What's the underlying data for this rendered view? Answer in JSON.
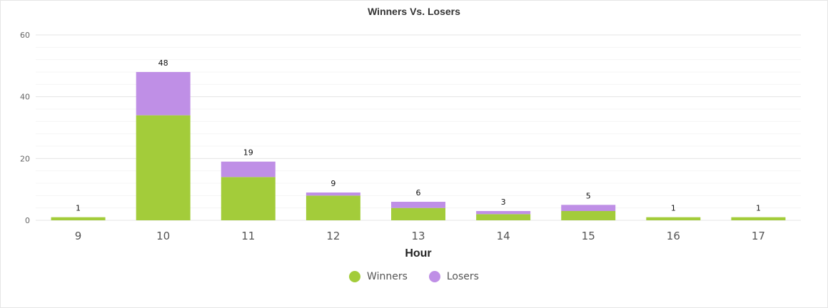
{
  "chart_data": {
    "type": "bar",
    "stacked": true,
    "title": "Winners Vs. Losers",
    "xlabel": "Hour",
    "ylabel": "",
    "ylim": [
      0,
      60
    ],
    "yticks": [
      0,
      20,
      40,
      60
    ],
    "categories": [
      "9",
      "10",
      "11",
      "12",
      "13",
      "14",
      "15",
      "16",
      "17"
    ],
    "series": [
      {
        "name": "Winners",
        "color": "#a3cc3a",
        "values": [
          1,
          34,
          14,
          8,
          4,
          2,
          3,
          1,
          1
        ]
      },
      {
        "name": "Losers",
        "color": "#bf8fe6",
        "values": [
          0,
          14,
          5,
          1,
          2,
          1,
          2,
          0,
          0
        ]
      }
    ],
    "totals": [
      1,
      48,
      19,
      9,
      6,
      3,
      5,
      1,
      1
    ],
    "grid": true,
    "legend_position": "bottom-center"
  }
}
